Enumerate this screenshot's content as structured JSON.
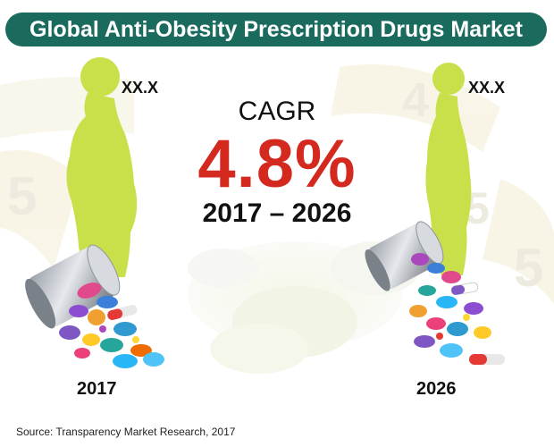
{
  "title": "Global Anti-Obesity Prescription Drugs Market",
  "market_value_2017": "XX.X",
  "market_value_2026": "XX.X",
  "cagr": {
    "label": "CAGR",
    "value": "4.8%",
    "period": "2017 – 2026"
  },
  "year_left": "2017",
  "year_right": "2026",
  "source": "Source: Transparency Market Research, 2017",
  "colors": {
    "title_bar": "#1a6b5e",
    "cagr_value": "#d3291f",
    "silhouette": "#c9e04a"
  },
  "icons": [
    "body-silhouette-icon",
    "pill-bottle-icon",
    "measuring-tape-icon"
  ]
}
